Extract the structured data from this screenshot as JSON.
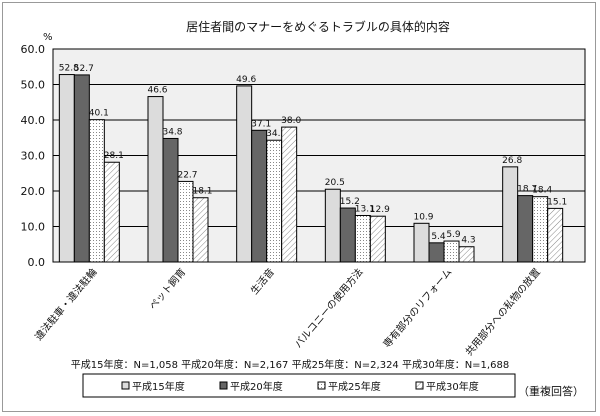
{
  "chart_data": {
    "type": "bar",
    "title": "居住者間のマナーをめぐるトラブルの具体的内容",
    "ylabel": "%",
    "ylim": [
      0,
      60
    ],
    "yticks": [
      "0.0",
      "10.0",
      "20.0",
      "30.0",
      "40.0",
      "50.0",
      "60.0"
    ],
    "grid": true,
    "categories": [
      "違法駐車・違法駐輪",
      "ペット飼育",
      "生活音",
      "バルコニーの使用方法",
      "専有部分のリフォーム",
      "共用部分への私物の放置"
    ],
    "series": [
      {
        "name": "平成15年度",
        "values": [
          52.8,
          46.6,
          49.6,
          20.5,
          10.9,
          26.8
        ],
        "labels": [
          "52.8",
          "46.6",
          "49.6",
          "20.5",
          "10.9",
          "26.8"
        ],
        "color": "#dcdcdc",
        "pattern": "solid"
      },
      {
        "name": "平成20年度",
        "values": [
          52.7,
          34.8,
          37.1,
          15.2,
          5.4,
          18.7
        ],
        "labels": [
          "52.7",
          "34.8",
          "37.1",
          "15.2",
          "5.4",
          "18.7"
        ],
        "color": "#666666",
        "pattern": "solid"
      },
      {
        "name": "平成25年度",
        "values": [
          40.1,
          22.7,
          34.3,
          13.1,
          5.9,
          18.4
        ],
        "labels": [
          "40.1",
          "22.7",
          "34.3",
          "13.1",
          "5.9",
          "18.4"
        ],
        "color": "#ffffff",
        "pattern": "dots"
      },
      {
        "name": "平成30年度",
        "values": [
          28.1,
          18.1,
          38.0,
          12.9,
          4.3,
          15.1
        ],
        "labels": [
          "28.1",
          "18.1",
          "38.0",
          "12.9",
          "4.3",
          "15.1"
        ],
        "color": "#ffffff",
        "pattern": "hatch"
      }
    ],
    "sample_note": "平成15年度：N=1,058 平成20年度：N=2,167 平成25年度：N=2,324 平成30年度：N=1,688",
    "legend_placement": "bottom",
    "legend_prefix": "□",
    "footnote": "（重複回答）"
  }
}
